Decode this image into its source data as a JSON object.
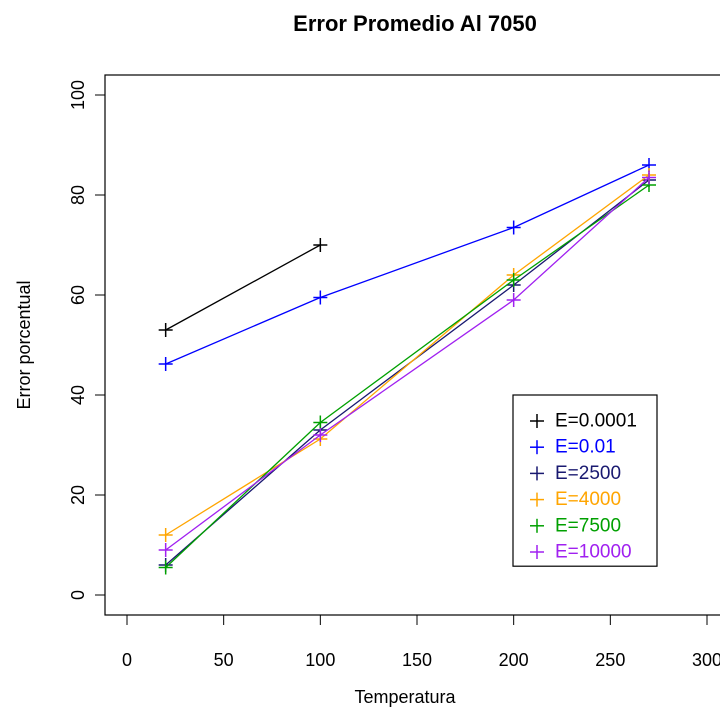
{
  "chart_data": {
    "type": "line",
    "title": "Error Promedio Al 7050",
    "xlabel": "Temperatura",
    "ylabel": "Error porcentual",
    "xlim": [
      0,
      300
    ],
    "ylim": [
      0,
      100
    ],
    "x_ticks": [
      "0",
      "50",
      "100",
      "150",
      "200",
      "250",
      "300"
    ],
    "y_ticks": [
      "0",
      "20",
      "40",
      "60",
      "80",
      "100"
    ],
    "grid": false,
    "legend_position": "bottom-right",
    "series": [
      {
        "name": "E=0.0001",
        "color": "#000000",
        "x": [
          20,
          100
        ],
        "y": [
          53,
          70
        ]
      },
      {
        "name": "E=0.01",
        "color": "#0000ff",
        "x": [
          20,
          100,
          200,
          270
        ],
        "y": [
          46.2,
          59.5,
          73.5,
          86
        ]
      },
      {
        "name": "E=2500",
        "color": "#191970",
        "x": [
          20,
          100,
          200,
          270
        ],
        "y": [
          6,
          33,
          62,
          83
        ]
      },
      {
        "name": "E=4000",
        "color": "#ffa500",
        "x": [
          20,
          100,
          200,
          270
        ],
        "y": [
          12,
          31.2,
          64,
          84
        ]
      },
      {
        "name": "E=7500",
        "color": "#00a000",
        "x": [
          20,
          100,
          200,
          270
        ],
        "y": [
          5.5,
          34.5,
          63,
          82
        ]
      },
      {
        "name": "E=10000",
        "color": "#a020f0",
        "x": [
          20,
          100,
          200,
          270
        ],
        "y": [
          9,
          32,
          59,
          83.5
        ]
      }
    ]
  }
}
